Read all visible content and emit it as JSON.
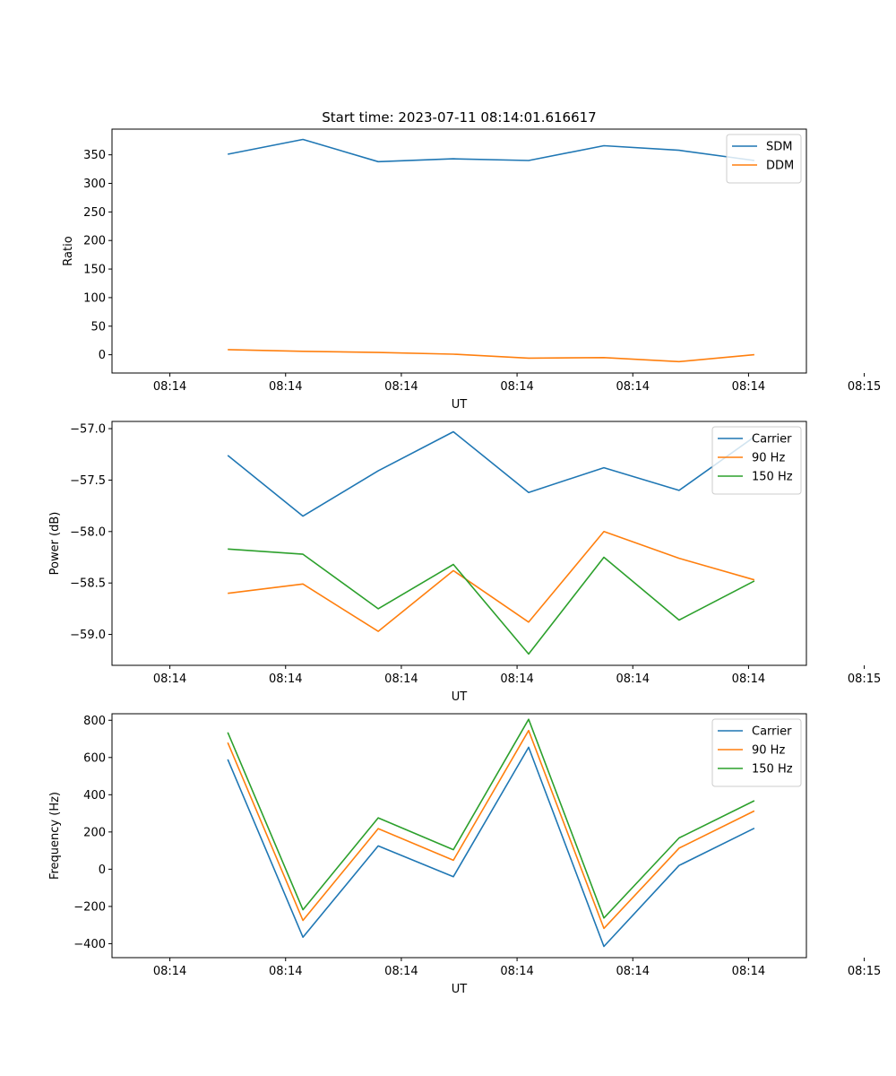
{
  "chart_data": [
    {
      "type": "line",
      "title": "Start time: 2023-07-11 08:14:01.616617",
      "xlabel": "UT",
      "ylabel": "Ratio",
      "xlim": [
        -0.5,
        5.5
      ],
      "ylim": [
        -32,
        395
      ],
      "x_ticks": [
        0,
        1,
        2,
        3,
        4,
        5,
        6
      ],
      "x_tick_labels": [
        "08:14",
        "08:14",
        "08:14",
        "08:14",
        "08:14",
        "08:14",
        "08:15"
      ],
      "y_ticks": [
        0,
        50,
        100,
        150,
        200,
        250,
        300,
        350
      ],
      "y_tick_labels": [
        "0",
        "50",
        "100",
        "150",
        "200",
        "250",
        "300",
        "350"
      ],
      "legend_position": "upper-right",
      "x": [
        0.5,
        1.15,
        1.8,
        2.45,
        3.1,
        3.75,
        4.4,
        5.05
      ],
      "series": [
        {
          "name": "SDM",
          "color": "#1f77b4",
          "values": [
            351,
            377,
            338,
            343,
            340,
            366,
            358,
            340
          ]
        },
        {
          "name": "DDM",
          "color": "#ff7f0e",
          "values": [
            9,
            6,
            4,
            1,
            -6,
            -5,
            -12,
            0
          ]
        }
      ]
    },
    {
      "type": "line",
      "title": "",
      "xlabel": "UT",
      "ylabel": "Power (dB)",
      "xlim": [
        -0.5,
        5.5
      ],
      "ylim": [
        -59.3,
        -56.93
      ],
      "x_ticks": [
        0,
        1,
        2,
        3,
        4,
        5,
        6
      ],
      "x_tick_labels": [
        "08:14",
        "08:14",
        "08:14",
        "08:14",
        "08:14",
        "08:14",
        "08:15"
      ],
      "y_ticks": [
        -59.0,
        -58.5,
        -58.0,
        -57.5,
        -57.0
      ],
      "y_tick_labels": [
        "−59.0",
        "−58.5",
        "−58.0",
        "−57.5",
        "−57.0"
      ],
      "legend_position": "upper-right",
      "x": [
        0.5,
        1.15,
        1.8,
        2.45,
        3.1,
        3.75,
        4.4,
        5.05
      ],
      "series": [
        {
          "name": "Carrier",
          "color": "#1f77b4",
          "values": [
            -57.26,
            -57.85,
            -57.41,
            -57.03,
            -57.62,
            -57.38,
            -57.6,
            -57.08
          ]
        },
        {
          "name": "90 Hz",
          "color": "#ff7f0e",
          "values": [
            -58.6,
            -58.51,
            -58.97,
            -58.38,
            -58.88,
            -58.0,
            -58.26,
            -58.47
          ]
        },
        {
          "name": "150 Hz",
          "color": "#2ca02c",
          "values": [
            -58.17,
            -58.22,
            -58.75,
            -58.32,
            -59.19,
            -58.25,
            -58.86,
            -58.48
          ]
        }
      ]
    },
    {
      "type": "line",
      "title": "",
      "xlabel": "UT",
      "ylabel": "Frequency (Hz)",
      "xlim": [
        -0.5,
        5.5
      ],
      "ylim": [
        -475,
        835
      ],
      "x_ticks": [
        0,
        1,
        2,
        3,
        4,
        5,
        6
      ],
      "x_tick_labels": [
        "08:14",
        "08:14",
        "08:14",
        "08:14",
        "08:14",
        "08:14",
        "08:15"
      ],
      "y_ticks": [
        -400,
        -200,
        0,
        200,
        400,
        600,
        800
      ],
      "y_tick_labels": [
        "−400",
        "−200",
        "0",
        "200",
        "400",
        "600",
        "800"
      ],
      "legend_position": "upper-right",
      "x": [
        0.5,
        1.15,
        1.8,
        2.45,
        3.1,
        3.75,
        4.4,
        5.05
      ],
      "series": [
        {
          "name": "Carrier",
          "color": "#1f77b4",
          "values": [
            590,
            -365,
            125,
            -40,
            655,
            -415,
            20,
            220
          ]
        },
        {
          "name": "90 Hz",
          "color": "#ff7f0e",
          "values": [
            680,
            -275,
            218,
            48,
            745,
            -318,
            113,
            313
          ]
        },
        {
          "name": "150 Hz",
          "color": "#2ca02c",
          "values": [
            735,
            -218,
            276,
            105,
            805,
            -262,
            168,
            368
          ]
        }
      ]
    }
  ]
}
